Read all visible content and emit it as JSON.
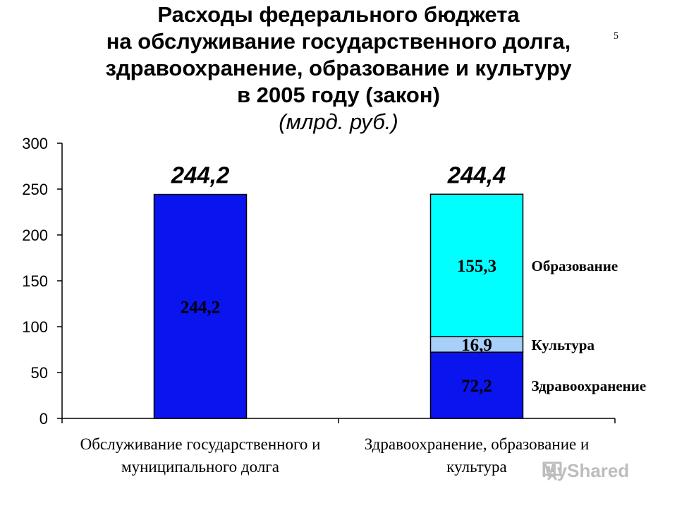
{
  "slide": {
    "number": "5"
  },
  "title": {
    "lines": [
      "Расходы федерального бюджета",
      "на обслуживание государственного долга,",
      "здравоохранение, образование и культуру",
      "в 2005 году (закон)"
    ],
    "subtitle": "(млрд. руб.)"
  },
  "watermark": {
    "text": "MyShared"
  },
  "colors": {
    "debt": "#0a14ee",
    "health": "#0a14ee",
    "culture": "#a8cff8",
    "education": "#00ffff",
    "border": "#000000"
  },
  "chart_data": {
    "type": "bar",
    "stacked": true,
    "ylim": [
      0,
      300
    ],
    "yticks": [
      "0",
      "50",
      "100",
      "150",
      "200",
      "250",
      "300"
    ],
    "categories": [
      [
        "Обслуживание государственного и",
        "муниципального долга"
      ],
      [
        "Здравоохранение, образование и",
        "культура"
      ]
    ],
    "totals": [
      "244,2",
      "244,4"
    ],
    "bars": [
      {
        "segments": [
          {
            "name": "",
            "value": 244.2,
            "label": "244,2",
            "color": "#0a14ee"
          }
        ]
      },
      {
        "segments": [
          {
            "name": "Здравоохранение",
            "value": 72.2,
            "label": "72,2",
            "color": "#0a14ee"
          },
          {
            "name": "Культура",
            "value": 16.9,
            "label": "16,9",
            "color": "#a8cff8"
          },
          {
            "name": "Образование",
            "value": 155.3,
            "label": "155,3",
            "color": "#00ffff"
          }
        ]
      }
    ],
    "grid": false
  }
}
